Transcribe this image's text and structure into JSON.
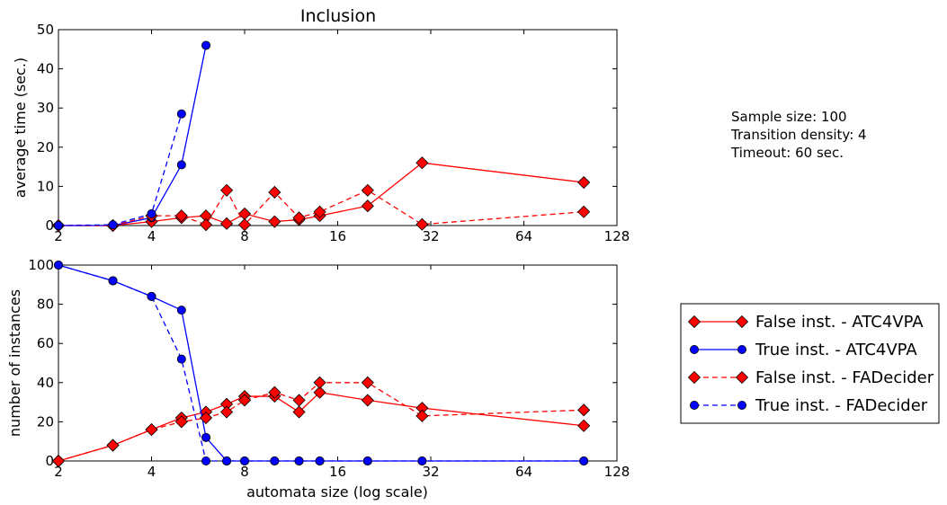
{
  "annotation": {
    "lines": [
      "Sample size: 100",
      "Transition density: 4",
      "Timeout: 60 sec."
    ]
  },
  "legend": {
    "placement": "right-middle",
    "entries": [
      {
        "label": "False inst. - ATC4VPA",
        "color": "#ff0000",
        "marker": "diamond",
        "dashed": false
      },
      {
        "label": "True inst. - ATC4VPA",
        "color": "#0000ff",
        "marker": "circle",
        "dashed": false
      },
      {
        "label": "False inst. - FADecider",
        "color": "#ff0000",
        "marker": "diamond",
        "dashed": true
      },
      {
        "label": "True inst. - FADecider",
        "color": "#0000ff",
        "marker": "circle",
        "dashed": true
      }
    ]
  },
  "chart_data": [
    {
      "type": "line",
      "title": "Inclusion",
      "xlabel": "",
      "ylabel": "average time (sec.)",
      "xscale": "log2",
      "xlim": [
        2,
        128
      ],
      "ylim": [
        0,
        50
      ],
      "xticks": [
        "2",
        "4",
        "8",
        "16",
        "32",
        "64",
        "128"
      ],
      "yticks": [
        "0",
        "10",
        "20",
        "30",
        "40",
        "50"
      ],
      "grid": false,
      "series": [
        {
          "name": "False inst. - ATC4VPA",
          "color": "#ff0000",
          "marker": "diamond",
          "dashed": false,
          "x": [
            2,
            3,
            4,
            5,
            6,
            7,
            8,
            10,
            12,
            14,
            20,
            30,
            100
          ],
          "y": [
            0,
            0,
            1,
            2,
            2.5,
            0.5,
            3,
            1,
            1.5,
            2.5,
            5,
            16,
            11
          ]
        },
        {
          "name": "True inst. - ATC4VPA",
          "color": "#0000ff",
          "marker": "circle",
          "dashed": false,
          "x": [
            2,
            3,
            4,
            5,
            6
          ],
          "y": [
            0,
            0,
            2,
            15.5,
            46
          ]
        },
        {
          "name": "False inst. - FADecider",
          "color": "#ff0000",
          "marker": "diamond",
          "dashed": true,
          "x": [
            2,
            3,
            4,
            5,
            6,
            7,
            8,
            10,
            12,
            14,
            20,
            30,
            100
          ],
          "y": [
            0,
            0,
            2.5,
            2.5,
            0.2,
            9,
            0.2,
            8.5,
            2,
            3.5,
            9,
            0.3,
            3.5
          ]
        },
        {
          "name": "True inst. - FADecider",
          "color": "#0000ff",
          "marker": "circle",
          "dashed": true,
          "x": [
            2,
            3,
            4,
            5
          ],
          "y": [
            0,
            0.2,
            3,
            28.5
          ]
        }
      ]
    },
    {
      "type": "line",
      "title": "",
      "xlabel": "automata size (log scale)",
      "ylabel": "number of instances",
      "xscale": "log2",
      "xlim": [
        2,
        128
      ],
      "ylim": [
        0,
        100
      ],
      "xticks": [
        "2",
        "4",
        "8",
        "16",
        "32",
        "64",
        "128"
      ],
      "yticks": [
        "0",
        "20",
        "40",
        "60",
        "80",
        "100"
      ],
      "grid": false,
      "series": [
        {
          "name": "False inst. - ATC4VPA",
          "color": "#ff0000",
          "marker": "diamond",
          "dashed": false,
          "x": [
            2,
            3,
            4,
            5,
            6,
            7,
            8,
            10,
            12,
            14,
            20,
            30,
            100
          ],
          "y": [
            0,
            8,
            16,
            22,
            25,
            29,
            33,
            33,
            25,
            35,
            31,
            27,
            18
          ]
        },
        {
          "name": "True inst. - ATC4VPA",
          "color": "#0000ff",
          "marker": "circle",
          "dashed": false,
          "x": [
            2,
            3,
            4,
            5,
            6,
            7,
            8,
            10,
            12,
            14,
            20,
            30,
            100
          ],
          "y": [
            100,
            92,
            84,
            77,
            12,
            0,
            0,
            0,
            0,
            0,
            0,
            0,
            0
          ]
        },
        {
          "name": "False inst. - FADecider",
          "color": "#ff0000",
          "marker": "diamond",
          "dashed": true,
          "x": [
            2,
            3,
            4,
            5,
            6,
            7,
            8,
            10,
            12,
            14,
            20,
            30,
            100
          ],
          "y": [
            0,
            8,
            16,
            20,
            22,
            25,
            31,
            35,
            31,
            40,
            40,
            23,
            26
          ]
        },
        {
          "name": "True inst. - FADecider",
          "color": "#0000ff",
          "marker": "circle",
          "dashed": true,
          "x": [
            2,
            3,
            4,
            5,
            6,
            7,
            8,
            10,
            12,
            14,
            20,
            30,
            100
          ],
          "y": [
            100,
            92,
            84,
            52,
            0,
            0,
            0,
            0,
            0,
            0,
            0,
            0,
            0
          ]
        }
      ]
    }
  ]
}
